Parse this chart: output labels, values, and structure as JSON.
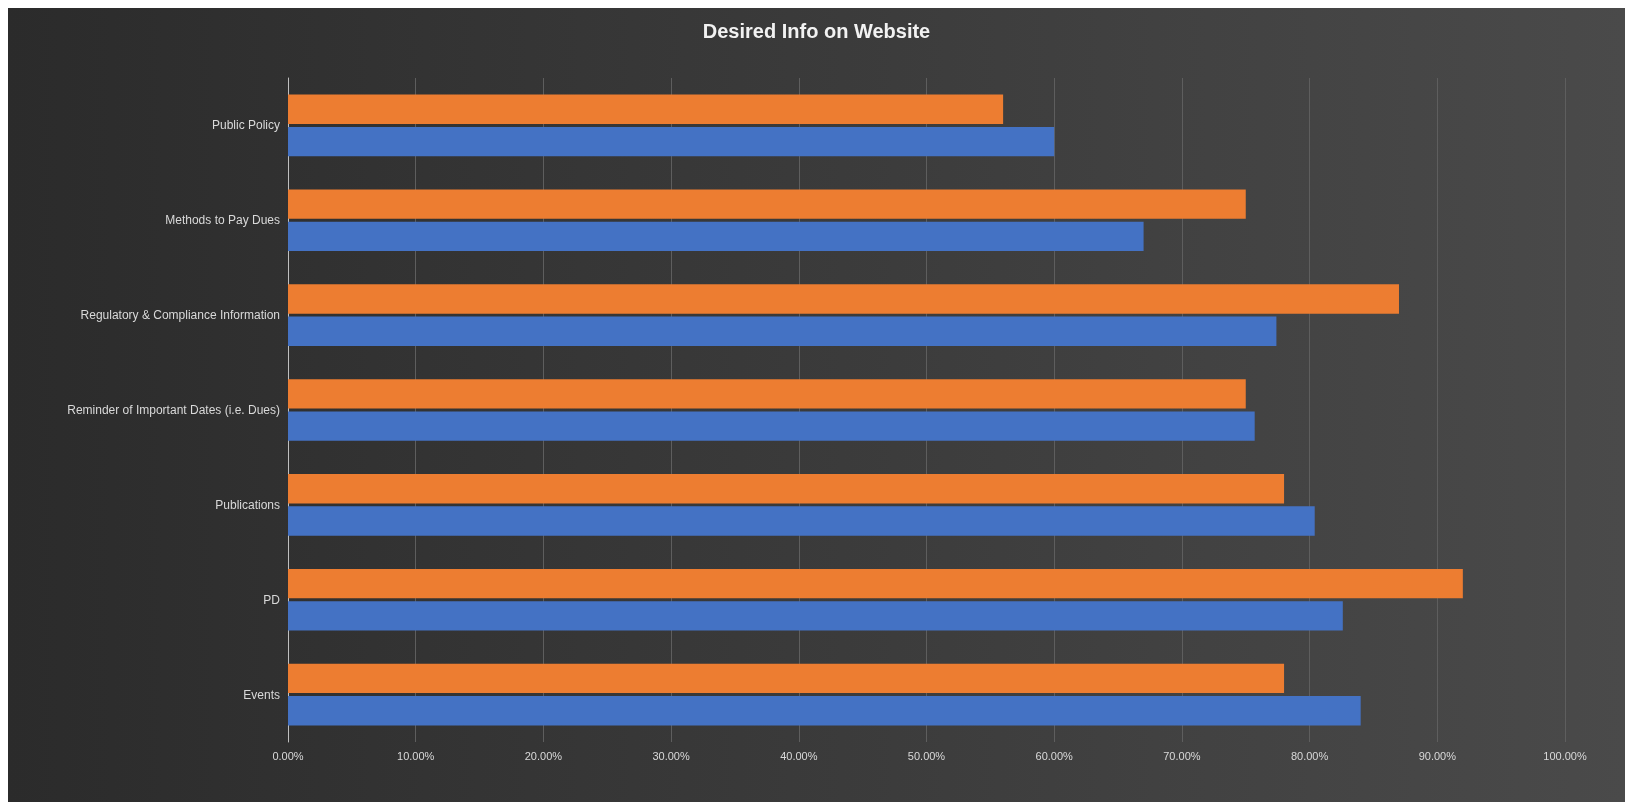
{
  "chart_data": {
    "type": "bar",
    "orientation": "horizontal",
    "title": "Desired Info on Website",
    "categories": [
      "Public Policy",
      "Methods to Pay Dues",
      "Regulatory & Compliance Information",
      "Reminder of Important Dates (i.e. Dues)",
      "Publications",
      "PD",
      "Events"
    ],
    "series": [
      {
        "color": "#ed7d31",
        "values": [
          56,
          75,
          87,
          75,
          78,
          92,
          78
        ]
      },
      {
        "color": "#4472c4",
        "values": [
          60,
          67,
          77.4,
          75.7,
          80.4,
          82.6,
          84
        ]
      }
    ],
    "xlim": [
      0,
      100
    ],
    "xticks": [
      {
        "value": 0,
        "label": "0.00%"
      },
      {
        "value": 10,
        "label": "10.00%"
      },
      {
        "value": 20,
        "label": "20.00%"
      },
      {
        "value": 30,
        "label": "30.00%"
      },
      {
        "value": 40,
        "label": "40.00%"
      },
      {
        "value": 50,
        "label": "50.00%"
      },
      {
        "value": 60,
        "label": "60.00%"
      },
      {
        "value": 70,
        "label": "70.00%"
      },
      {
        "value": 80,
        "label": "80.00%"
      },
      {
        "value": 90,
        "label": "90.00%"
      },
      {
        "value": 100,
        "label": "100.00%"
      }
    ],
    "grid": "x"
  }
}
